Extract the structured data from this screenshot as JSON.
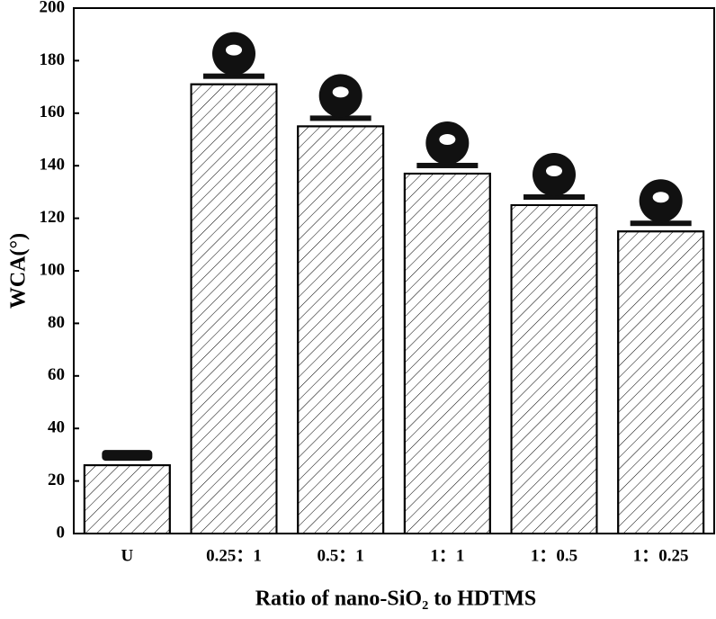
{
  "chart_data": {
    "type": "bar",
    "xlabel": "Ratio of nano-SiO₂ to HDTMS",
    "ylabel": "WCA(°)",
    "categories": [
      "U",
      "0.25：1",
      "0.5：1",
      "1：1",
      "1：0.5",
      "1：0.25"
    ],
    "values": [
      26,
      171,
      155,
      137,
      125,
      115
    ],
    "color": "#ffffff",
    "ylim": [
      0,
      200
    ],
    "yticks": [
      0,
      20,
      40,
      60,
      80,
      100,
      120,
      140,
      160,
      180,
      200
    ],
    "grid": false
  }
}
